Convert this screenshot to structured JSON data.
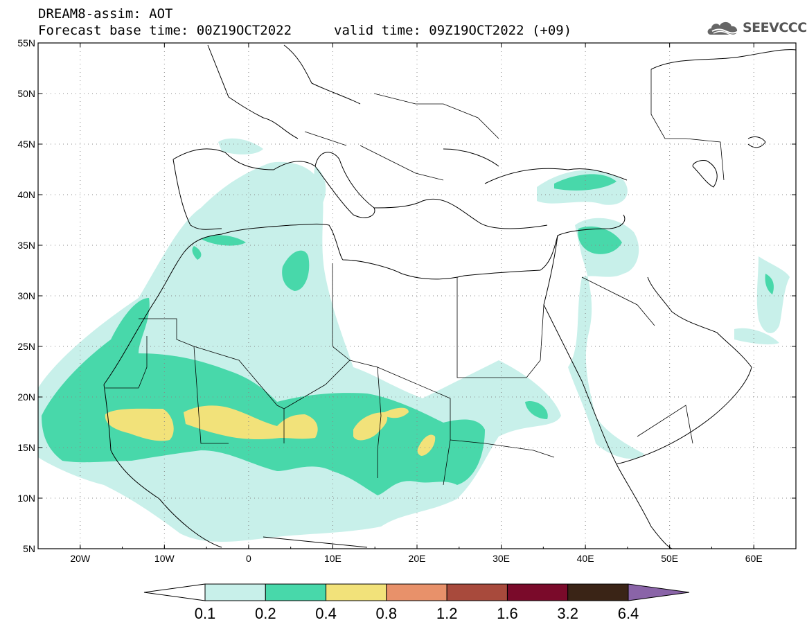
{
  "header": {
    "model_line": "DREAM8-assim: AOT",
    "base_time": "Forecast base time: 00Z19OCT2022",
    "valid_time": "valid time: 09Z19OCT2022 (+09)",
    "logo_text": "SEEVCCC"
  },
  "map": {
    "lon_range": [
      -25,
      65
    ],
    "lat_range": [
      5,
      55
    ],
    "lat_labels": [
      "55N",
      "50N",
      "45N",
      "40N",
      "35N",
      "30N",
      "25N",
      "20N",
      "15N",
      "10N",
      "5N"
    ],
    "lat_values": [
      55,
      50,
      45,
      40,
      35,
      30,
      25,
      20,
      15,
      10,
      5
    ],
    "lon_labels": [
      "20W",
      "10W",
      "0",
      "10E",
      "20E",
      "30E",
      "40E",
      "50E",
      "60E"
    ],
    "lon_values": [
      -20,
      -10,
      0,
      10,
      20,
      30,
      40,
      50,
      60
    ],
    "grid": "dotted"
  },
  "legend": {
    "thresholds": [
      "0.1",
      "0.2",
      "0.4",
      "0.8",
      "1.2",
      "1.6",
      "3.2",
      "6.4"
    ],
    "colors": [
      "#ffffff",
      "#c8f0ea",
      "#48d8aa",
      "#f2e27a",
      "#e8916a",
      "#a84a3c",
      "#7a0a2a",
      "#3a2416",
      "#8a64a8"
    ]
  }
}
